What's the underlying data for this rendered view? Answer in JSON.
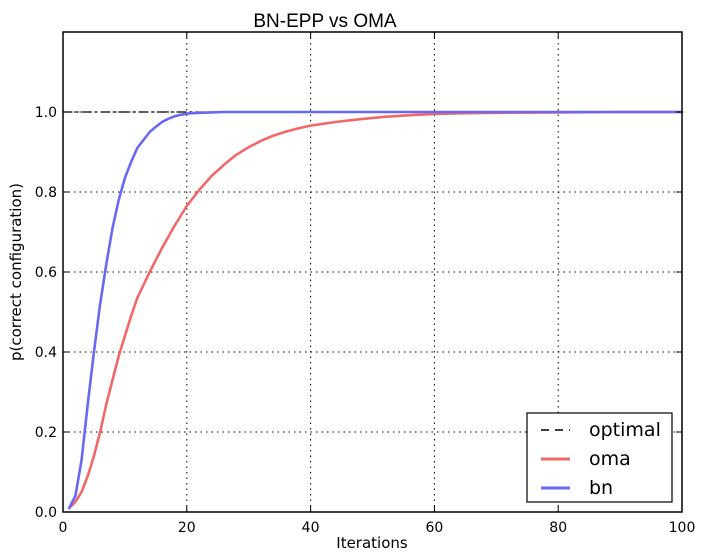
{
  "chart_data": {
    "type": "line",
    "title": "BN-EPP vs OMA",
    "xlabel": "Iterations",
    "ylabel": "p(correct configuration)",
    "xlim": [
      0,
      100
    ],
    "ylim": [
      0,
      1.2
    ],
    "xticks": [
      0,
      20,
      40,
      60,
      80,
      100
    ],
    "yticks": [
      0.0,
      0.2,
      0.4,
      0.6,
      0.8,
      1.0
    ],
    "xtick_labels": [
      "0",
      "20",
      "40",
      "60",
      "80",
      "100"
    ],
    "ytick_labels": [
      "0.0",
      "0.2",
      "0.4",
      "0.6",
      "0.8",
      "1.0"
    ],
    "grid": true,
    "legend_position": "lower-right",
    "series": [
      {
        "name": "optimal",
        "style": "dash-dot",
        "color": "#000000",
        "x": [
          0,
          100
        ],
        "values": [
          1.0,
          1.0
        ]
      },
      {
        "name": "oma",
        "style": "solid",
        "color": "#f26868",
        "x": [
          1,
          2,
          3,
          4,
          5,
          6,
          7,
          8,
          9,
          10,
          11,
          12,
          14,
          16,
          18,
          20,
          22,
          24,
          26,
          28,
          30,
          32,
          34,
          36,
          38,
          40,
          44,
          48,
          52,
          56,
          60,
          65,
          70,
          80,
          90,
          100
        ],
        "values": [
          0.01,
          0.025,
          0.05,
          0.09,
          0.14,
          0.2,
          0.27,
          0.33,
          0.39,
          0.44,
          0.49,
          0.535,
          0.6,
          0.66,
          0.715,
          0.765,
          0.805,
          0.84,
          0.868,
          0.893,
          0.912,
          0.928,
          0.941,
          0.951,
          0.959,
          0.966,
          0.975,
          0.982,
          0.988,
          0.992,
          0.995,
          0.997,
          0.998,
          0.999,
          1.0,
          1.0
        ]
      },
      {
        "name": "bn",
        "style": "solid",
        "color": "#6868f2",
        "x": [
          1,
          2,
          3,
          4,
          5,
          6,
          7,
          8,
          9,
          10,
          11,
          12,
          13,
          14,
          15,
          16,
          17,
          18,
          19,
          20,
          22,
          24,
          26,
          30,
          40,
          60,
          80,
          100
        ],
        "values": [
          0.01,
          0.04,
          0.13,
          0.27,
          0.4,
          0.52,
          0.62,
          0.71,
          0.78,
          0.835,
          0.875,
          0.91,
          0.93,
          0.95,
          0.963,
          0.975,
          0.983,
          0.989,
          0.993,
          0.996,
          0.998,
          0.999,
          1.0,
          1.0,
          1.0,
          1.0,
          1.0,
          1.0
        ]
      }
    ]
  }
}
